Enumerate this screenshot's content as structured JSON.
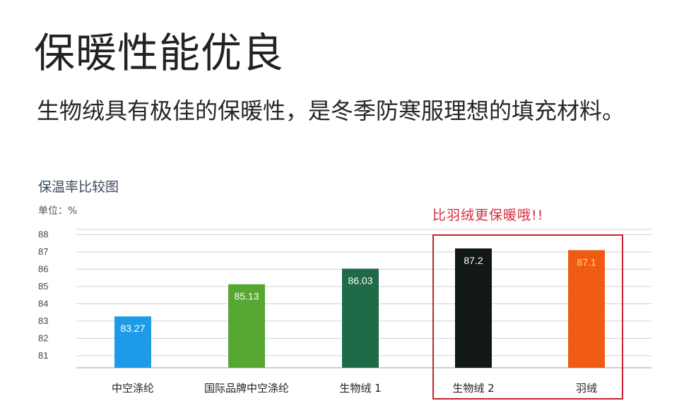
{
  "page": {
    "title": "保暖性能优良",
    "subtitle": "生物绒具有极佳的保暖性，是冬季防寒服理想的填充材料。"
  },
  "chart_data": {
    "type": "bar",
    "title": "保温率比较图",
    "unit_label": "单位：%",
    "categories": [
      "中空涤纶",
      "国际品牌中空涤纶",
      "生物绒 1",
      "生物绒 2",
      "羽绒"
    ],
    "values": [
      83.27,
      85.13,
      86.03,
      87.2,
      87.1
    ],
    "value_labels": [
      "83.27",
      "85.13",
      "86.03",
      "87.2",
      "87.1"
    ],
    "bar_colors": [
      "#1e9be8",
      "#56a832",
      "#1f6b47",
      "#111815",
      "#ef5a14"
    ],
    "label_colors": [
      "#ffffff",
      "#ffffff",
      "#ffffff",
      "#ffffff",
      "#ffe070"
    ],
    "y_ticks": [
      81,
      82,
      83,
      84,
      85,
      86,
      87,
      88
    ],
    "ylim": [
      80.3,
      88.3
    ],
    "grid": true,
    "legend": "none",
    "annotation": {
      "text": "比羽绒更保暖哦!!",
      "color": "#d62b3a",
      "box_color": "#c8202e",
      "highlighted_categories": [
        "生物绒 2",
        "羽绒"
      ]
    }
  }
}
